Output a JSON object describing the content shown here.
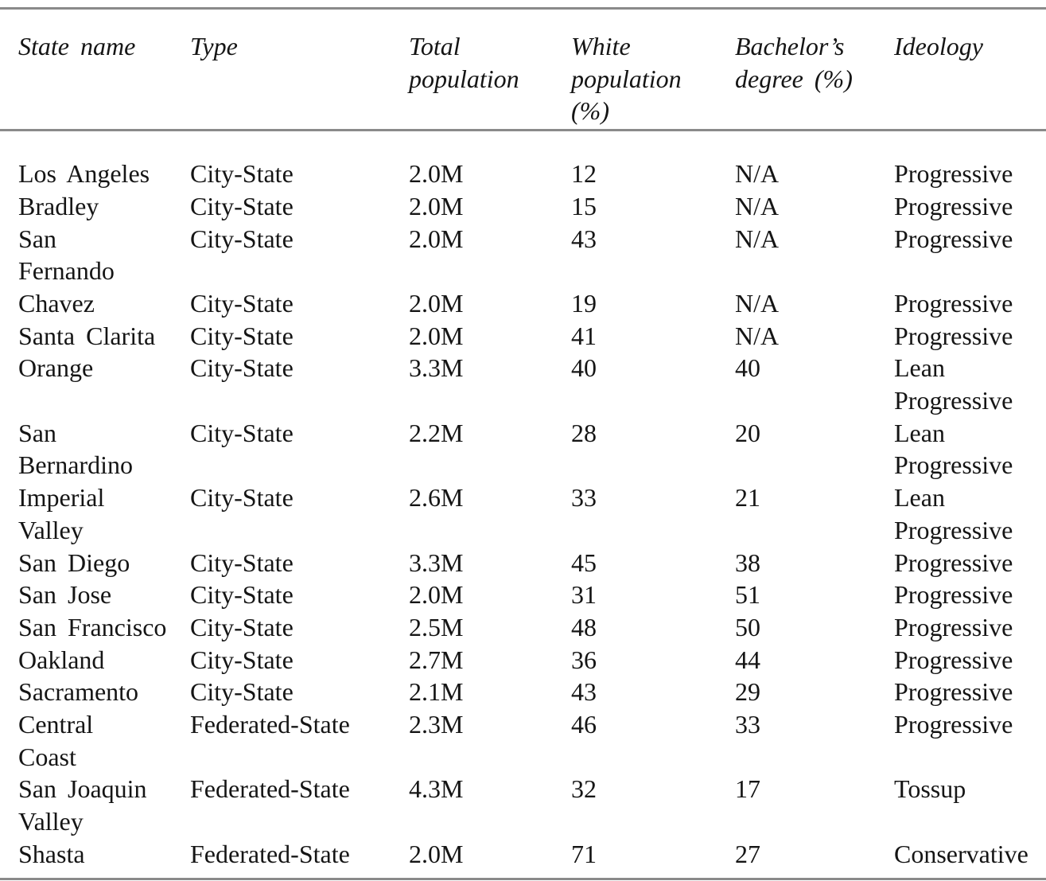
{
  "table": {
    "columns": [
      {
        "label": "State name"
      },
      {
        "label": "Type"
      },
      {
        "label": "Total\npopulation"
      },
      {
        "label": "White\npopulation\n(%)"
      },
      {
        "label": "Bachelor’s\ndegree (%)"
      },
      {
        "label": "Ideology"
      }
    ],
    "rows": [
      [
        "Los Angeles",
        "City-State",
        "2.0M",
        "12",
        "N/A",
        "Progressive"
      ],
      [
        "Bradley",
        "City-State",
        "2.0M",
        "15",
        "N/A",
        "Progressive"
      ],
      [
        "San\nFernando",
        "City-State",
        "2.0M",
        "43",
        "N/A",
        "Progressive"
      ],
      [
        "Chavez",
        "City-State",
        "2.0M",
        "19",
        "N/A",
        "Progressive"
      ],
      [
        "Santa Clarita",
        "City-State",
        "2.0M",
        "41",
        "N/A",
        "Progressive"
      ],
      [
        "Orange",
        "City-State",
        "3.3M",
        "40",
        "40",
        "Lean\nProgressive"
      ],
      [
        "San\nBernardino",
        "City-State",
        "2.2M",
        "28",
        "20",
        "Lean\nProgressive"
      ],
      [
        "Imperial\nValley",
        "City-State",
        "2.6M",
        "33",
        "21",
        "Lean\nProgressive"
      ],
      [
        "San Diego",
        "City-State",
        "3.3M",
        "45",
        "38",
        "Progressive"
      ],
      [
        "San Jose",
        "City-State",
        "2.0M",
        "31",
        "51",
        "Progressive"
      ],
      [
        "San Francisco",
        "City-State",
        "2.5M",
        "48",
        "50",
        "Progressive"
      ],
      [
        "Oakland",
        "City-State",
        "2.7M",
        "36",
        "44",
        "Progressive"
      ],
      [
        "Sacramento",
        "City-State",
        "2.1M",
        "43",
        "29",
        "Progressive"
      ],
      [
        "Central\nCoast",
        "Federated-State",
        "2.3M",
        "46",
        "33",
        "Progressive"
      ],
      [
        "San Joaquin\nValley",
        "Federated-State",
        "4.3M",
        "32",
        "17",
        "Tossup"
      ],
      [
        "Shasta",
        "Federated-State",
        "2.0M",
        "71",
        "27",
        "Conservative"
      ]
    ]
  },
  "colors": {
    "rule": "#8a8a8a",
    "text": "#151515",
    "background": "#ffffff"
  }
}
